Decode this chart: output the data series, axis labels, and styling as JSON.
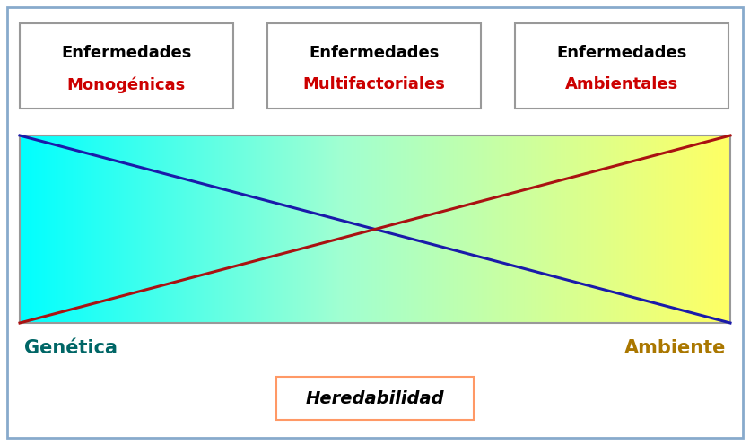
{
  "boxes_top": [
    {
      "line1": "Enfermedades",
      "line2": "Monogénicas"
    },
    {
      "line1": "Enfermedades",
      "line2": "Multifactoriales"
    },
    {
      "line1": "Enfermedades",
      "line2": "Ambientales"
    }
  ],
  "cyan": [
    0,
    255,
    255
  ],
  "green_mid": [
    160,
    255,
    210
  ],
  "yellow": [
    255,
    255,
    100
  ],
  "blue_line_color": "#1a1aaa",
  "red_line_color": "#aa1111",
  "line_lw": 2.2,
  "label_left": "Genética",
  "label_left_color": "#006666",
  "label_right": "Ambiente",
  "label_right_color": "#aa7700",
  "heredabilidad_label": "Heredabilidad",
  "heredabilidad_box_color": "#FF9966",
  "outer_border_color": "#88AACC",
  "gradient_border_color": "#999999",
  "bg_color": "#FFFFFF",
  "black_label": "#000000",
  "red_label": "#CC0000",
  "box_edge_color": "#999999"
}
